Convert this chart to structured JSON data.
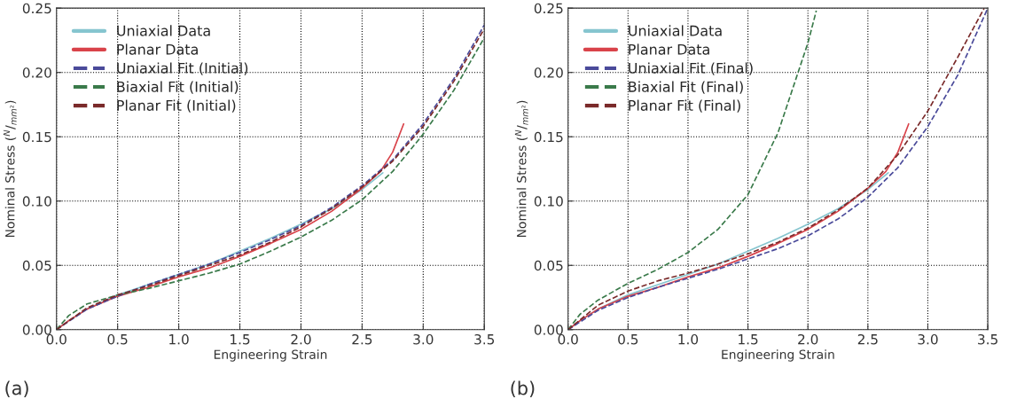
{
  "chart_data": [
    {
      "type": "line",
      "xlabel": "Engineering Strain",
      "ylabel": "Nominal Stress ($^{N}$/$_{mm²}$)",
      "annotations": [
        "(a)"
      ],
      "xlim": [
        0,
        3.5
      ],
      "ylim": [
        0,
        0.25
      ],
      "xticks": [
        {
          "value": 0,
          "label": "0.0"
        },
        {
          "value": 0.5,
          "label": "0.5"
        },
        {
          "value": 1,
          "label": "1.0"
        },
        {
          "value": 1.5,
          "label": "1.5"
        },
        {
          "value": 2,
          "label": "2.0"
        },
        {
          "value": 2.5,
          "label": "2.5"
        },
        {
          "value": 3,
          "label": "3.0"
        },
        {
          "value": 3.5,
          "label": "3.5"
        }
      ],
      "yticks": [
        {
          "value": 0,
          "label": "0.00"
        },
        {
          "value": 0.05,
          "label": "0.05"
        },
        {
          "value": 0.1,
          "label": "0.10"
        },
        {
          "value": 0.15,
          "label": "0.15"
        },
        {
          "value": 0.2,
          "label": "0.20"
        },
        {
          "value": 0.25,
          "label": "0.25"
        }
      ],
      "grid": true,
      "legend": "top left",
      "series": [
        {
          "name": "Uniaxial Data",
          "color": "#86c5cf",
          "line_style": "solid",
          "x": [
            0,
            0.1,
            0.25,
            0.5,
            0.75,
            1.0,
            1.25,
            1.5,
            1.75,
            2.0,
            2.25,
            2.5,
            2.67
          ],
          "values": [
            0,
            0.007,
            0.016,
            0.027,
            0.035,
            0.043,
            0.051,
            0.061,
            0.071,
            0.082,
            0.094,
            0.109,
            0.122
          ]
        },
        {
          "name": "Planar Data",
          "color": "#d9434a",
          "line_style": "solid",
          "x": [
            0,
            0.1,
            0.25,
            0.5,
            0.75,
            1.0,
            1.25,
            1.5,
            1.75,
            2.0,
            2.25,
            2.5,
            2.65,
            2.75,
            2.84
          ],
          "values": [
            0,
            0.007,
            0.016,
            0.026,
            0.033,
            0.041,
            0.048,
            0.057,
            0.067,
            0.078,
            0.092,
            0.11,
            0.123,
            0.138,
            0.16
          ]
        },
        {
          "name": "Uniaxial Fit (Initial)",
          "color": "#4a4a9a",
          "line_style": "dashed",
          "x": [
            0,
            0.25,
            0.5,
            0.75,
            1.0,
            1.25,
            1.5,
            1.75,
            2.0,
            2.25,
            2.5,
            2.75,
            3.0,
            3.25,
            3.5
          ],
          "values": [
            0,
            0.016,
            0.026,
            0.035,
            0.043,
            0.051,
            0.06,
            0.07,
            0.081,
            0.095,
            0.112,
            0.132,
            0.16,
            0.195,
            0.237
          ]
        },
        {
          "name": "Biaxial Fit (Initial)",
          "color": "#3a7a4a",
          "line_style": "dashed",
          "x": [
            0,
            0.1,
            0.25,
            0.5,
            0.75,
            1.0,
            1.25,
            1.5,
            1.75,
            2.0,
            2.25,
            2.5,
            2.75,
            3.0,
            3.25,
            3.5
          ],
          "values": [
            0,
            0.011,
            0.02,
            0.027,
            0.032,
            0.038,
            0.044,
            0.051,
            0.061,
            0.072,
            0.085,
            0.101,
            0.123,
            0.152,
            0.186,
            0.227
          ]
        },
        {
          "name": "Planar Fit (Initial)",
          "color": "#7a2a2a",
          "line_style": "dashed",
          "x": [
            0,
            0.25,
            0.5,
            0.75,
            1.0,
            1.25,
            1.5,
            1.75,
            2.0,
            2.25,
            2.5,
            2.75,
            3.0,
            3.25,
            3.5
          ],
          "values": [
            0,
            0.017,
            0.027,
            0.034,
            0.042,
            0.05,
            0.058,
            0.068,
            0.08,
            0.094,
            0.111,
            0.131,
            0.158,
            0.193,
            0.234
          ]
        }
      ]
    },
    {
      "type": "line",
      "xlabel": "Engineering Strain",
      "ylabel": "Nominal Stress ($^{N}$/$_{mm²}$)",
      "annotations": [
        "(b)"
      ],
      "xlim": [
        0,
        3.5
      ],
      "ylim": [
        0,
        0.25
      ],
      "xticks": [
        {
          "value": 0,
          "label": "0.0"
        },
        {
          "value": 0.5,
          "label": "0.5"
        },
        {
          "value": 1,
          "label": "1.0"
        },
        {
          "value": 1.5,
          "label": "1.5"
        },
        {
          "value": 2,
          "label": "2.0"
        },
        {
          "value": 2.5,
          "label": "2.5"
        },
        {
          "value": 3,
          "label": "3.0"
        },
        {
          "value": 3.5,
          "label": "3.5"
        }
      ],
      "yticks": [
        {
          "value": 0,
          "label": "0.00"
        },
        {
          "value": 0.05,
          "label": "0.05"
        },
        {
          "value": 0.1,
          "label": "0.10"
        },
        {
          "value": 0.15,
          "label": "0.15"
        },
        {
          "value": 0.2,
          "label": "0.20"
        },
        {
          "value": 0.25,
          "label": "0.25"
        }
      ],
      "grid": true,
      "legend": "top left",
      "series": [
        {
          "name": "Uniaxial Data",
          "color": "#86c5cf",
          "line_style": "solid",
          "x": [
            0,
            0.1,
            0.25,
            0.5,
            0.75,
            1.0,
            1.25,
            1.5,
            1.75,
            2.0,
            2.25,
            2.5,
            2.67
          ],
          "values": [
            0,
            0.007,
            0.016,
            0.027,
            0.035,
            0.043,
            0.051,
            0.061,
            0.071,
            0.082,
            0.094,
            0.109,
            0.122
          ]
        },
        {
          "name": "Planar Data",
          "color": "#d9434a",
          "line_style": "solid",
          "x": [
            0,
            0.1,
            0.25,
            0.5,
            0.75,
            1.0,
            1.25,
            1.5,
            1.75,
            2.0,
            2.25,
            2.5,
            2.65,
            2.75,
            2.84
          ],
          "values": [
            0,
            0.007,
            0.016,
            0.026,
            0.033,
            0.041,
            0.048,
            0.057,
            0.067,
            0.078,
            0.092,
            0.11,
            0.123,
            0.138,
            0.16
          ]
        },
        {
          "name": "Uniaxial Fit (Final)",
          "color": "#4a4a9a",
          "line_style": "dashed",
          "x": [
            0,
            0.25,
            0.5,
            0.75,
            1.0,
            1.25,
            1.5,
            1.75,
            2.0,
            2.25,
            2.5,
            2.75,
            3.0,
            3.25,
            3.5
          ],
          "values": [
            0,
            0.015,
            0.025,
            0.033,
            0.04,
            0.047,
            0.055,
            0.063,
            0.073,
            0.086,
            0.103,
            0.126,
            0.158,
            0.198,
            0.25
          ]
        },
        {
          "name": "Biaxial Fit (Final)",
          "color": "#3a7a4a",
          "line_style": "dashed",
          "x": [
            0,
            0.1,
            0.25,
            0.5,
            0.75,
            1.0,
            1.25,
            1.5,
            1.75,
            2.0,
            2.07
          ],
          "values": [
            0,
            0.012,
            0.023,
            0.036,
            0.047,
            0.06,
            0.078,
            0.105,
            0.153,
            0.223,
            0.248
          ]
        },
        {
          "name": "Planar Fit (Final)",
          "color": "#7a2a2a",
          "line_style": "dashed",
          "x": [
            0,
            0.25,
            0.5,
            0.75,
            1.0,
            1.25,
            1.5,
            1.75,
            2.0,
            2.25,
            2.5,
            2.75,
            3.0,
            3.25,
            3.47
          ],
          "values": [
            0,
            0.019,
            0.03,
            0.038,
            0.044,
            0.051,
            0.059,
            0.068,
            0.079,
            0.093,
            0.11,
            0.136,
            0.17,
            0.212,
            0.25
          ]
        }
      ]
    }
  ]
}
